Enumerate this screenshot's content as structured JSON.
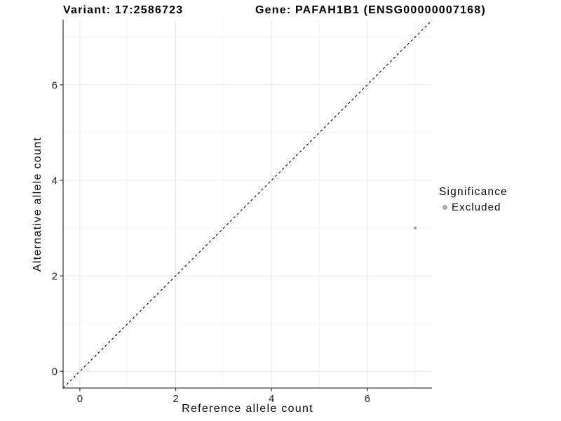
{
  "header": {
    "variant_title": "Variant: 17:2586723",
    "gene_title": "Gene: PAFAH1B1 (ENSG00000007168)"
  },
  "chart_data": {
    "type": "scatter",
    "xlabel": "Reference allele count",
    "ylabel": "Alternative allele count",
    "xlim": [
      -0.35,
      7.35
    ],
    "ylim": [
      -0.35,
      7.35
    ],
    "x_ticks": [
      0,
      2,
      4,
      6
    ],
    "y_ticks": [
      0,
      2,
      4,
      6
    ],
    "x_tick_labels": [
      "0",
      "2",
      "4",
      "6"
    ],
    "y_tick_labels": [
      "0",
      "2",
      "4",
      "6"
    ],
    "minor_grid": [
      1,
      3,
      5,
      7
    ],
    "grid": true,
    "points": [
      {
        "x": 7,
        "y": 3,
        "series": "Excluded"
      }
    ],
    "reference_line": {
      "slope": 1,
      "intercept": 0,
      "style": "dashed",
      "color": "#000000"
    },
    "legend": {
      "title": "Significance",
      "position": "right",
      "items": [
        {
          "label": "Excluded",
          "color": "#a9a9a9"
        }
      ]
    },
    "colors": {
      "grid_major": "#e8e8e8",
      "grid_minor": "#f3f3f3",
      "axis": "#404040",
      "point": "#a9a9a9",
      "background": "#ffffff"
    }
  }
}
